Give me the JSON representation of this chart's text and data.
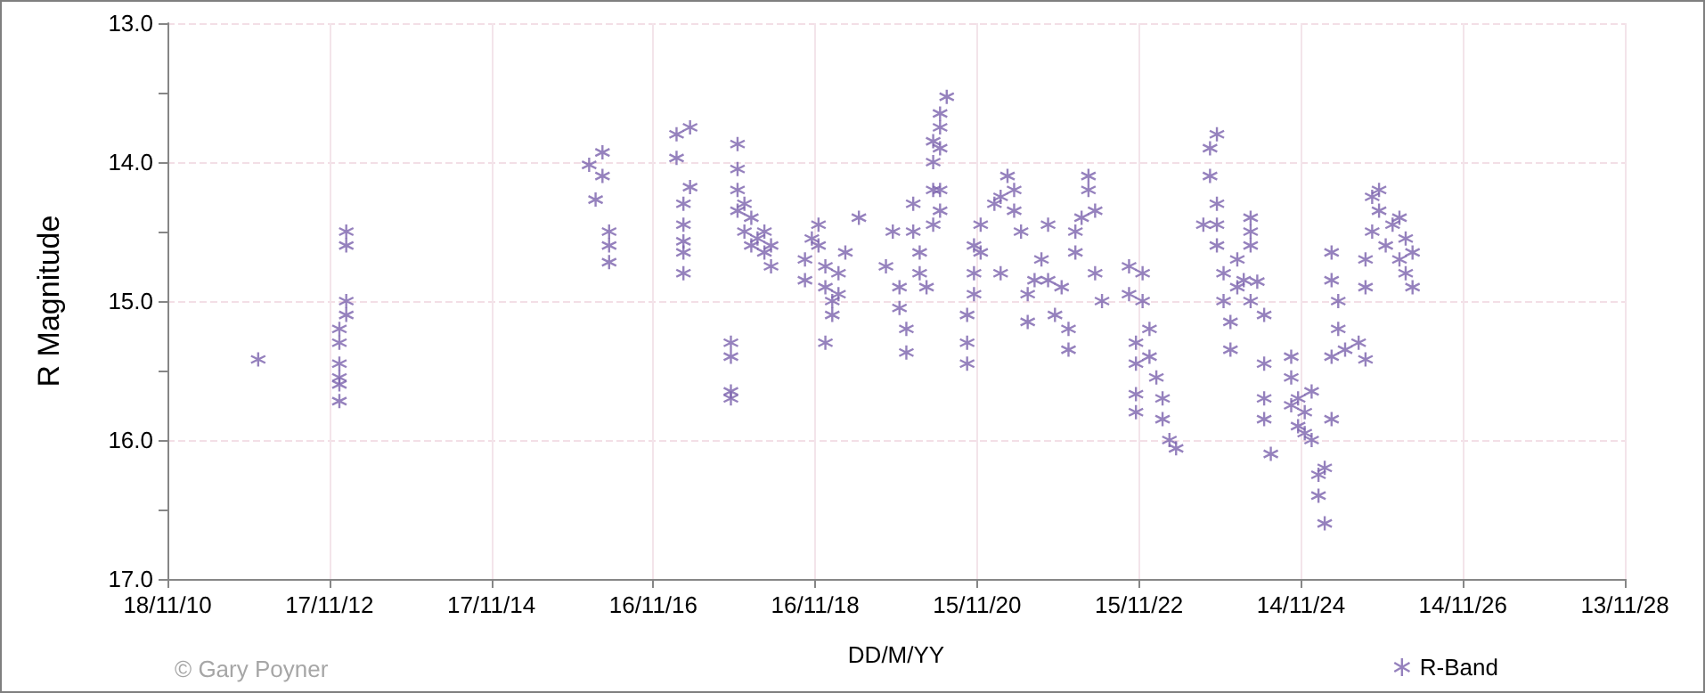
{
  "chart_data": {
    "type": "scatter",
    "xlabel": "DD/M/YY",
    "ylabel": "R Magnitude",
    "annotations": [
      "© Gary Poyner"
    ],
    "xlim": [
      "2010-11-18",
      "2028-11-13"
    ],
    "xticks": [
      {
        "value": "2010-11-18",
        "label": "18/11/10"
      },
      {
        "value": "2012-11-17",
        "label": "17/11/12"
      },
      {
        "value": "2014-11-17",
        "label": "17/11/14"
      },
      {
        "value": "2016-11-16",
        "label": "16/11/16"
      },
      {
        "value": "2018-11-16",
        "label": "16/11/18"
      },
      {
        "value": "2020-11-15",
        "label": "15/11/20"
      },
      {
        "value": "2022-11-15",
        "label": "15/11/22"
      },
      {
        "value": "2024-11-14",
        "label": "14/11/24"
      },
      {
        "value": "2026-11-14",
        "label": "14/11/26"
      },
      {
        "value": "2028-11-13",
        "label": "13/11/28"
      }
    ],
    "ylim": [
      17,
      13
    ],
    "yticks": [
      {
        "value": 13,
        "label": "13.0"
      },
      {
        "value": 13.5,
        "label": null
      },
      {
        "value": 14,
        "label": "14.0"
      },
      {
        "value": 14.5,
        "label": null
      },
      {
        "value": 15,
        "label": "15.0"
      },
      {
        "value": 15.5,
        "label": null
      },
      {
        "value": 16,
        "label": "16.0"
      },
      {
        "value": 16.5,
        "label": null
      },
      {
        "value": 17,
        "label": "17.0"
      }
    ],
    "grid": true,
    "legend": "bottom right",
    "marker": "cross",
    "series": [
      {
        "name": "R-Band",
        "color": "#7b61ad",
        "x": [
          "2012-01",
          "2013-02",
          "2013-02",
          "2013-02",
          "2013-02",
          "2013-01",
          "2013-01",
          "2013-01",
          "2013-01",
          "2013-01",
          "2013-01",
          "2016-02",
          "2016-04",
          "2016-04",
          "2016-03",
          "2016-05",
          "2016-05",
          "2016-05",
          "2017-03",
          "2017-05",
          "2017-03",
          "2017-05",
          "2017-04",
          "2017-04",
          "2017-04",
          "2017-04",
          "2017-04",
          "2017-11",
          "2017-11",
          "2017-11",
          "2017-11",
          "2017-12",
          "2017-12",
          "2017-12",
          "2017-12",
          "2018-01",
          "2018-01",
          "2018-02",
          "2018-02",
          "2018-03",
          "2018-04",
          "2018-04",
          "2018-05",
          "2018-05",
          "2018-10",
          "2018-10",
          "2018-11",
          "2018-12",
          "2018-12",
          "2019-01",
          "2019-01",
          "2019-02",
          "2019-02",
          "2019-01",
          "2019-03",
          "2019-03",
          "2019-04",
          "2019-06",
          "2019-10",
          "2019-11",
          "2019-12",
          "2019-12",
          "2020-01",
          "2020-01",
          "2020-02",
          "2020-02",
          "2020-03",
          "2020-03",
          "2020-04",
          "2020-05",
          "2020-05",
          "2020-06",
          "2020-06",
          "2020-05",
          "2020-05",
          "2020-06",
          "2020-06",
          "2020-06",
          "2020-07",
          "2020-10",
          "2020-10",
          "2020-10",
          "2020-11",
          "2020-11",
          "2020-11",
          "2020-12",
          "2020-12",
          "2021-02",
          "2021-03",
          "2021-04",
          "2021-05",
          "2021-05",
          "2021-06",
          "2021-03",
          "2021-07",
          "2021-07",
          "2021-08",
          "2021-10",
          "2021-09",
          "2021-10",
          "2021-11",
          "2021-12",
          "2022-01",
          "2022-01",
          "2022-02",
          "2022-02",
          "2022-03",
          "2022-04",
          "2022-04",
          "2022-05",
          "2022-05",
          "2022-06",
          "2022-10",
          "2022-10",
          "2022-11",
          "2022-11",
          "2022-11",
          "2022-11",
          "2022-12",
          "2022-12",
          "2023-01",
          "2023-01",
          "2023-02",
          "2023-03",
          "2023-03",
          "2023-04",
          "2023-05",
          "2023-09",
          "2023-10",
          "2023-10",
          "2023-11",
          "2023-11",
          "2023-11",
          "2023-11",
          "2023-12",
          "2023-12",
          "2024-01",
          "2024-01",
          "2024-02",
          "2024-02",
          "2024-03",
          "2024-04",
          "2024-04",
          "2024-04",
          "2024-04",
          "2024-05",
          "2024-06",
          "2024-06",
          "2024-06",
          "2024-06",
          "2024-07",
          "2024-10",
          "2024-10",
          "2024-10",
          "2024-11",
          "2024-11",
          "2024-12",
          "2024-12",
          "2025-01",
          "2025-01",
          "2025-02",
          "2025-02",
          "2025-03",
          "2025-03",
          "2025-04",
          "2025-04",
          "2025-04",
          "2025-05",
          "2025-05",
          "2025-04",
          "2025-06",
          "2025-08",
          "2025-09",
          "2025-09",
          "2025-09",
          "2025-10",
          "2025-10",
          "2025-11",
          "2025-11",
          "2025-12",
          "2026-01",
          "2026-02",
          "2026-02",
          "2026-03",
          "2026-03",
          "2026-04",
          "2026-04"
        ],
        "values": [
          15.42,
          14.5,
          14.6,
          15.0,
          15.1,
          15.2,
          15.3,
          15.45,
          15.55,
          15.6,
          15.72,
          14.02,
          13.93,
          14.1,
          14.27,
          14.5,
          14.6,
          14.72,
          13.8,
          13.75,
          13.97,
          14.18,
          14.3,
          14.45,
          14.57,
          14.65,
          14.8,
          15.7,
          15.65,
          15.3,
          15.4,
          13.87,
          14.05,
          14.2,
          14.35,
          14.3,
          14.5,
          14.4,
          14.6,
          14.55,
          14.5,
          14.65,
          14.6,
          14.75,
          14.7,
          14.85,
          14.55,
          14.45,
          14.6,
          14.75,
          14.9,
          15.0,
          15.1,
          15.3,
          14.95,
          14.8,
          14.65,
          14.4,
          14.75,
          14.5,
          14.9,
          15.05,
          15.2,
          15.37,
          14.3,
          14.5,
          14.65,
          14.8,
          14.9,
          14.2,
          14.45,
          14.2,
          14.35,
          13.85,
          14.0,
          13.75,
          13.9,
          13.65,
          13.53,
          15.45,
          15.3,
          15.1,
          14.95,
          14.8,
          14.6,
          14.45,
          14.65,
          14.3,
          14.25,
          14.1,
          14.2,
          14.35,
          14.5,
          14.8,
          14.95,
          15.15,
          14.85,
          14.45,
          14.7,
          14.85,
          15.1,
          14.9,
          15.2,
          15.35,
          14.5,
          14.65,
          14.4,
          14.2,
          14.1,
          14.35,
          14.8,
          15.0,
          14.75,
          14.95,
          15.3,
          15.45,
          15.67,
          15.8,
          14.8,
          15.0,
          15.2,
          15.4,
          15.55,
          15.7,
          15.85,
          16.0,
          16.06,
          14.45,
          13.9,
          14.1,
          13.8,
          14.3,
          14.45,
          14.6,
          14.8,
          15.0,
          15.15,
          15.35,
          14.9,
          14.7,
          14.85,
          15.0,
          14.6,
          14.4,
          14.5,
          14.86,
          15.1,
          15.45,
          15.7,
          15.85,
          16.1,
          15.4,
          15.55,
          15.75,
          15.9,
          15.7,
          15.95,
          15.8,
          15.65,
          16.0,
          16.25,
          16.4,
          16.6,
          16.2,
          15.85,
          14.65,
          14.85,
          15.0,
          15.2,
          15.4,
          15.35,
          15.3,
          15.42,
          14.9,
          14.7,
          14.5,
          14.25,
          14.2,
          14.35,
          14.6,
          14.45,
          14.4,
          14.7,
          14.55,
          14.8,
          14.9,
          14.65
        ]
      }
    ]
  }
}
